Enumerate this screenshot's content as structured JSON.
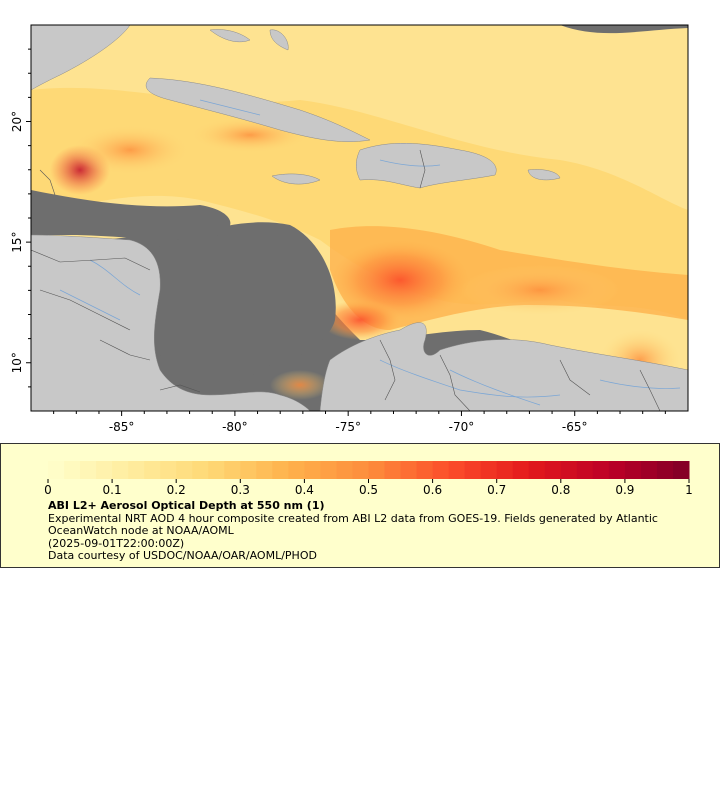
{
  "map": {
    "x_tick_labels": [
      "-85°",
      "-80°",
      "-75°",
      "-70°",
      "-65°"
    ],
    "y_tick_labels": [
      "20°",
      "15°",
      "10°"
    ],
    "lon_range": [
      -89,
      -60
    ],
    "lat_range": [
      8,
      24
    ],
    "colors": {
      "ocean_no_data": "#6e6e6e",
      "land": "#c8c8c8",
      "rivers": "#7aa6d6",
      "borders": "#555555",
      "axis": "#000000"
    }
  },
  "legend": {
    "tick_labels": [
      "0",
      "0.1",
      "0.2",
      "0.3",
      "0.4",
      "0.5",
      "0.6",
      "0.7",
      "0.8",
      "0.9",
      "1"
    ],
    "title": "ABI L2+ Aerosol Optical Depth at 550 nm (1)",
    "description": "Experimental NRT AOD 4 hour composite created from ABI L2 data from GOES-19. Fields generated by Atlantic OceanWatch node at NOAA/AOML",
    "time": "(2025-09-01T22:00:00Z)",
    "credit": "Data courtesy of USDOC/NOAA/OAR/AOML/PHOD",
    "colormap": [
      "#ffffcc",
      "#ffeda0",
      "#fed976",
      "#feb24c",
      "#fd8d3c",
      "#fc4e2a",
      "#e31a1c",
      "#bd0026",
      "#800026"
    ],
    "value_range": [
      0,
      1
    ]
  }
}
